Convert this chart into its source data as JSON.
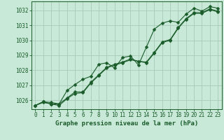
{
  "title": "Graphe pression niveau de la mer (hPa)",
  "bg_color": "#c8e8d8",
  "plot_bg_color": "#c8e8d8",
  "grid_color": "#a8c8b8",
  "line_color": "#1a5c2a",
  "marker": "D",
  "markersize": 2.5,
  "linewidth": 0.8,
  "xlim": [
    -0.5,
    23.5
  ],
  "ylim": [
    1025.4,
    1032.6
  ],
  "xticks": [
    0,
    1,
    2,
    3,
    4,
    5,
    6,
    7,
    8,
    9,
    10,
    11,
    12,
    13,
    14,
    15,
    16,
    17,
    18,
    19,
    20,
    21,
    22,
    23
  ],
  "yticks": [
    1026,
    1027,
    1028,
    1029,
    1030,
    1031,
    1032
  ],
  "tick_fontsize": 5.5,
  "xlabel_fontsize": 6.5,
  "series1_x": [
    0,
    1,
    2,
    3,
    4,
    5,
    6,
    7,
    8,
    9,
    10,
    11,
    12,
    13,
    14,
    15,
    16,
    17,
    18,
    19,
    20,
    21,
    22,
    23
  ],
  "series1_y": [
    1025.65,
    1025.9,
    1025.75,
    1025.75,
    1026.15,
    1026.55,
    1026.55,
    1027.2,
    1027.7,
    1028.2,
    1028.4,
    1028.55,
    1028.75,
    1028.6,
    1028.55,
    1029.2,
    1029.9,
    1030.05,
    1030.85,
    1031.45,
    1031.85,
    1031.85,
    1032.1,
    1031.95
  ],
  "series2_x": [
    0,
    1,
    2,
    3,
    4,
    5,
    6,
    7,
    8,
    9,
    10,
    11,
    12,
    13,
    14,
    15,
    16,
    17,
    18,
    19,
    20,
    21,
    22,
    23
  ],
  "series2_y": [
    1025.65,
    1025.9,
    1025.85,
    1025.75,
    1026.65,
    1027.05,
    1027.4,
    1027.6,
    1028.4,
    1028.5,
    1028.15,
    1028.85,
    1028.95,
    1028.35,
    1029.55,
    1030.75,
    1031.15,
    1031.3,
    1031.2,
    1031.75,
    1032.15,
    1031.95,
    1032.25,
    1032.15
  ],
  "series3_x": [
    0,
    1,
    2,
    3,
    4,
    5,
    6,
    7,
    8,
    9,
    10,
    11,
    12,
    13,
    14,
    15,
    16,
    17,
    18,
    19,
    20,
    21,
    22,
    23
  ],
  "series3_y": [
    1025.65,
    1025.85,
    1025.75,
    1025.65,
    1026.1,
    1026.45,
    1026.5,
    1027.15,
    1027.65,
    1028.15,
    1028.35,
    1028.5,
    1028.7,
    1028.6,
    1028.5,
    1029.15,
    1029.85,
    1030.0,
    1030.8,
    1031.4,
    1031.8,
    1031.8,
    1032.05,
    1031.9
  ]
}
